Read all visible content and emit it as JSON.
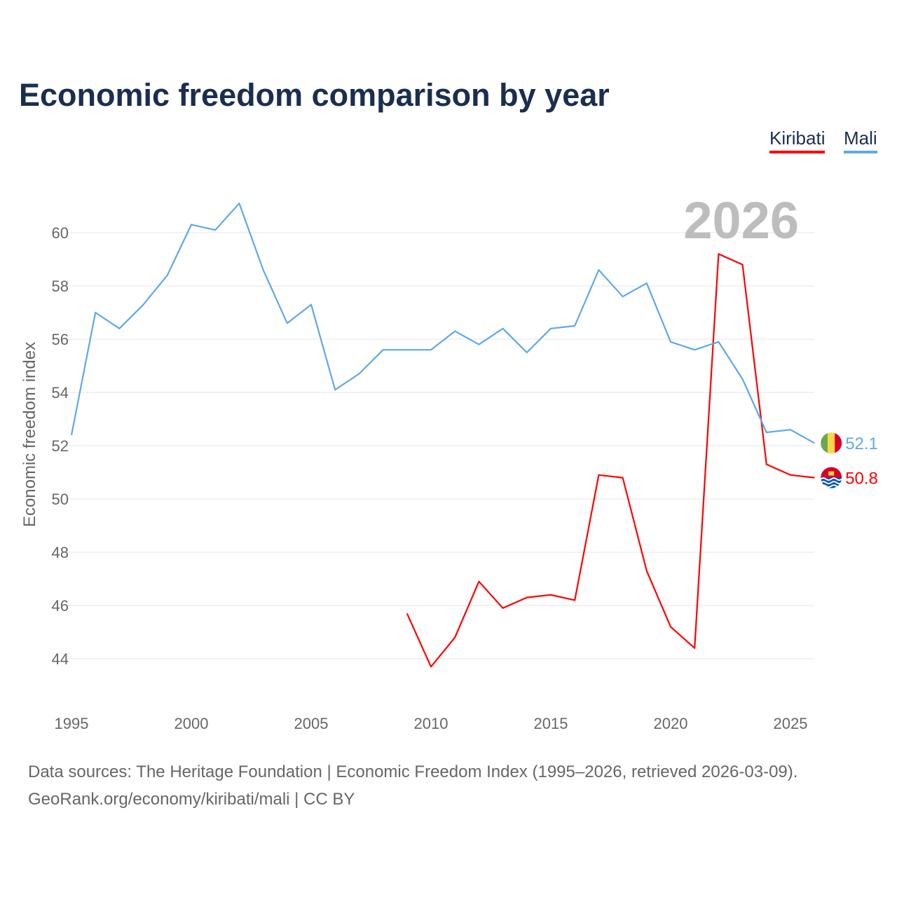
{
  "chart_data": {
    "type": "line",
    "title": "Economic freedom comparison by year",
    "ylabel": "Economic freedom index",
    "xlabel": "",
    "xlim": [
      1995,
      2026
    ],
    "ylim": [
      42.5,
      62
    ],
    "xticks": [
      1995,
      2000,
      2005,
      2010,
      2015,
      2020,
      2025
    ],
    "yticks": [
      44,
      46,
      48,
      50,
      52,
      54,
      56,
      58,
      60
    ],
    "grid": true,
    "legend_position": "top-right",
    "current_year_label": "2026",
    "series": [
      {
        "name": "Kiribati",
        "color": "#ff0000",
        "x": [
          2009,
          2010,
          2011,
          2012,
          2013,
          2014,
          2015,
          2016,
          2017,
          2018,
          2019,
          2020,
          2021,
          2022,
          2023,
          2024,
          2025,
          2026
        ],
        "values": [
          45.7,
          43.7,
          44.8,
          46.9,
          45.9,
          46.3,
          46.4,
          46.2,
          50.9,
          50.8,
          47.3,
          45.2,
          44.4,
          59.2,
          58.8,
          51.3,
          50.9,
          50.8
        ],
        "end_label": "50.8",
        "flag_icon": "kiribati-flag-icon"
      },
      {
        "name": "Mali",
        "color": "#5fa8e8",
        "x": [
          1995,
          1996,
          1997,
          1998,
          1999,
          2000,
          2001,
          2002,
          2003,
          2004,
          2005,
          2006,
          2007,
          2008,
          2009,
          2010,
          2011,
          2012,
          2013,
          2014,
          2015,
          2016,
          2017,
          2018,
          2019,
          2020,
          2021,
          2022,
          2023,
          2024,
          2025,
          2026
        ],
        "values": [
          52.4,
          57.0,
          56.4,
          57.3,
          58.4,
          60.3,
          60.1,
          61.1,
          58.6,
          56.6,
          57.3,
          54.1,
          54.7,
          55.6,
          55.6,
          55.6,
          56.3,
          55.8,
          56.4,
          55.5,
          56.4,
          56.5,
          58.6,
          57.6,
          58.1,
          55.9,
          55.6,
          55.9,
          54.5,
          52.5,
          52.6,
          52.1
        ],
        "end_label": "52.1",
        "flag_icon": "mali-flag-icon"
      }
    ]
  },
  "footer": {
    "sources": "Data sources: The Heritage Foundation | Economic Freedom Index (1995–2026, retrieved 2026-03-09).",
    "credit": "GeoRank.org/economy/kiribati/mali | CC BY"
  }
}
